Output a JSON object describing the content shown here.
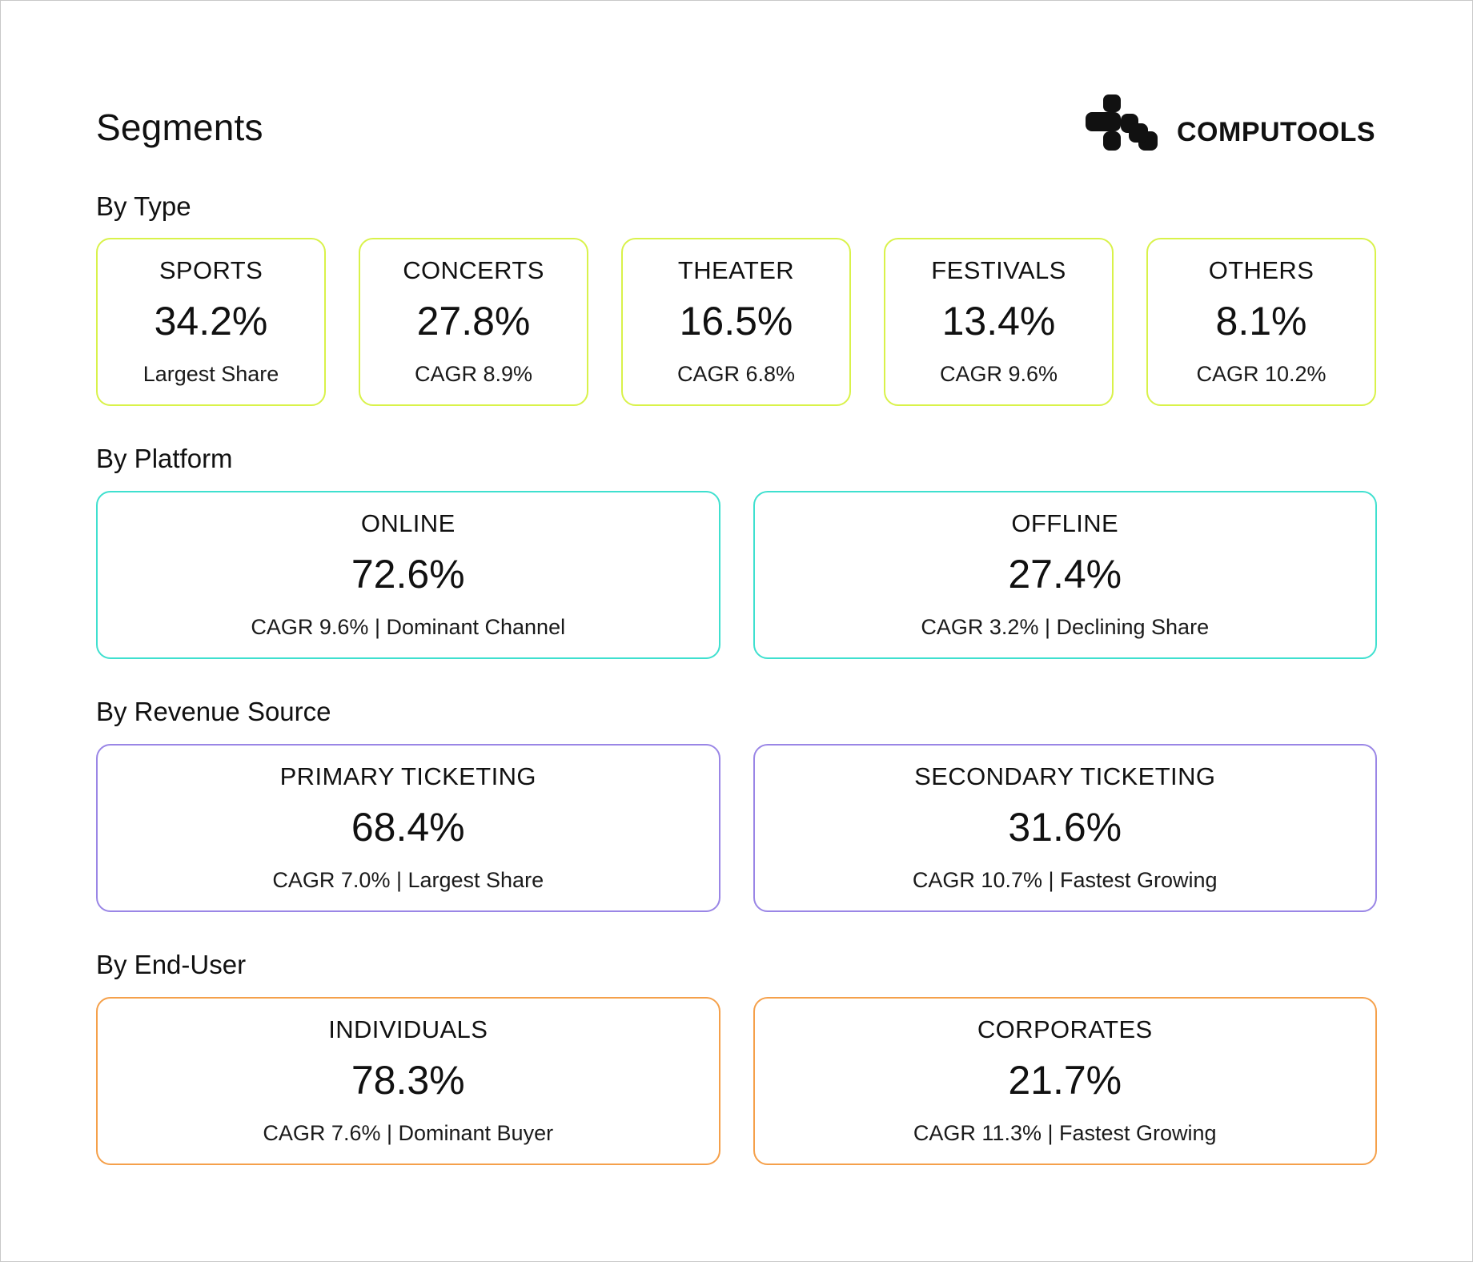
{
  "title": "Segments",
  "logo": {
    "text": "COMPUTOOLS",
    "icon": "computools-logo-icon"
  },
  "colors": {
    "type": "#d9f24a",
    "platform": "#3fe0cf",
    "revenue": "#9a86e6",
    "enduser": "#f5a04a"
  },
  "sections": {
    "type": {
      "title": "By Type",
      "cards": [
        {
          "name": "SPORTS",
          "value": "34.2%",
          "note": "Largest Share"
        },
        {
          "name": "CONCERTS",
          "value": "27.8%",
          "note": "CAGR 8.9%"
        },
        {
          "name": "THEATER",
          "value": "16.5%",
          "note": "CAGR 6.8%"
        },
        {
          "name": "FESTIVALS",
          "value": "13.4%",
          "note": "CAGR 9.6%"
        },
        {
          "name": "OTHERS",
          "value": "8.1%",
          "note": "CAGR 10.2%"
        }
      ]
    },
    "platform": {
      "title": "By Platform",
      "cards": [
        {
          "name": "ONLINE",
          "value": "72.6%",
          "note": "CAGR 9.6% | Dominant Channel"
        },
        {
          "name": "OFFLINE",
          "value": "27.4%",
          "note": "CAGR 3.2% | Declining Share"
        }
      ]
    },
    "revenue": {
      "title": "By Revenue Source",
      "cards": [
        {
          "name": "PRIMARY TICKETING",
          "value": "68.4%",
          "note": "CAGR 7.0% | Largest Share"
        },
        {
          "name": "SECONDARY TICKETING",
          "value": "31.6%",
          "note": "CAGR 10.7% | Fastest Growing"
        }
      ]
    },
    "enduser": {
      "title": "By End-User",
      "cards": [
        {
          "name": "INDIVIDUALS",
          "value": "78.3%",
          "note": "CAGR 7.6% | Dominant Buyer"
        },
        {
          "name": "CORPORATES",
          "value": "21.7%",
          "note": "CAGR 11.3% | Fastest Growing"
        }
      ]
    }
  }
}
